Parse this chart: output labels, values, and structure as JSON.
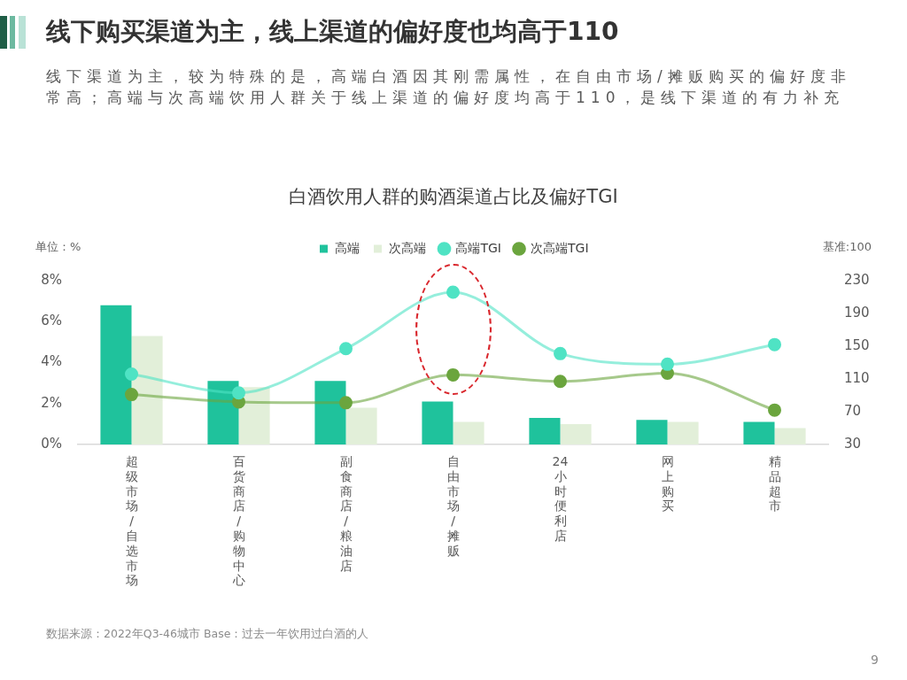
{
  "chart_data": {
    "type": "bar",
    "title": "线下购买渠道为主，线上渠道的偏好度也均高于110",
    "subtitle": "线下渠道为主，较为特殊的是，高端白酒因其刚需属性，在自由市场/摊贩购买的偏好度非常高；高端与次高端饮用人群关于线上渠道的偏好度均高于110，是线下渠道的有力补充",
    "annotations": [
      "白酒饮用人群的购酒渠道占比及偏好TGI",
      "数据来源：2022年Q3-46城市 Base：过去一年饮用过白酒的人",
      "9"
    ],
    "ylabel": "单位：%",
    "y2label": "基准:100",
    "categories": [
      "超级市场/自选市场",
      "百货商店/购物中心",
      "副食商店/粮油店",
      "自由市场/摊贩",
      "24小时便利店",
      "网上购买",
      "精品超市"
    ],
    "series": [
      {
        "name": "高端",
        "color": "#1fc29c",
        "values": [
          6.8,
          3.1,
          3.1,
          2.1,
          1.3,
          1.2,
          1.1
        ]
      },
      {
        "name": "次高端",
        "color": "#e2efd9",
        "values": [
          5.3,
          2.8,
          1.8,
          1.1,
          1.0,
          1.1,
          0.8
        ]
      },
      {
        "name": "高端TGI",
        "type": "line",
        "axis": "y2",
        "color": "#4fe3c4",
        "values": [
          116,
          93,
          147,
          216,
          141,
          128,
          152
        ]
      },
      {
        "name": "次高端TGI",
        "type": "line",
        "axis": "y2",
        "color": "#6ba53e",
        "values": [
          91,
          82,
          81,
          115,
          107,
          117,
          72
        ]
      }
    ],
    "ylim": [
      0,
      8
    ],
    "yticks": [
      {
        "value": 0,
        "label": "0%"
      },
      {
        "value": 2,
        "label": "2%"
      },
      {
        "value": 4,
        "label": "4%"
      },
      {
        "value": 6,
        "label": "6%"
      },
      {
        "value": 8,
        "label": "8%"
      }
    ],
    "y2lim": [
      30,
      230
    ],
    "y2ticks": [
      30,
      70,
      110,
      150,
      190,
      230
    ],
    "legend": "top",
    "marker": "circle",
    "line_style": "solid"
  }
}
